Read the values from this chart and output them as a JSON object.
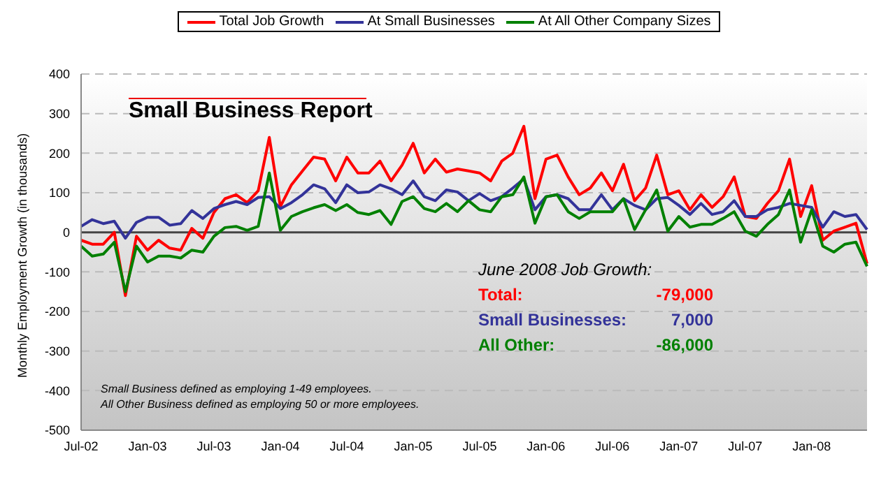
{
  "chart_data": {
    "type": "line",
    "title": "Small Business Report",
    "ylabel": "Monthly Employment Growth (in thousands)",
    "categories": [
      "Jul-02",
      null,
      null,
      null,
      null,
      null,
      "Jan-03",
      null,
      null,
      null,
      null,
      null,
      "Jul-03",
      null,
      null,
      null,
      null,
      null,
      "Jan-04",
      null,
      null,
      null,
      null,
      null,
      "Jul-04",
      null,
      null,
      null,
      null,
      null,
      "Jan-05",
      null,
      null,
      null,
      null,
      null,
      "Jul-05",
      null,
      null,
      null,
      null,
      null,
      "Jan-06",
      null,
      null,
      null,
      null,
      null,
      "Jul-06",
      null,
      null,
      null,
      null,
      null,
      "Jan-07",
      null,
      null,
      null,
      null,
      null,
      "Jul-07",
      null,
      null,
      null,
      null,
      null,
      "Jan-08",
      null,
      null,
      null,
      null,
      null
    ],
    "series": [
      {
        "name": "Total Job Growth",
        "color": "#ff0000",
        "values": [
          -20,
          -30,
          -30,
          0,
          -160,
          -10,
          -45,
          -20,
          -40,
          -45,
          10,
          -15,
          50,
          85,
          95,
          75,
          105,
          240,
          65,
          120,
          155,
          190,
          185,
          130,
          190,
          150,
          150,
          180,
          130,
          170,
          225,
          150,
          185,
          152,
          160,
          155,
          150,
          130,
          180,
          200,
          268,
          85,
          185,
          195,
          140,
          95,
          112,
          150,
          105,
          172,
          80,
          112,
          195,
          95,
          105,
          57,
          95,
          63,
          90,
          140,
          40,
          35,
          73,
          105,
          185,
          40,
          118,
          -20,
          3,
          13,
          23,
          -79
        ]
      },
      {
        "name": "At Small Businesses",
        "color": "#333399",
        "values": [
          15,
          32,
          22,
          28,
          -15,
          25,
          38,
          38,
          18,
          22,
          55,
          35,
          60,
          70,
          78,
          70,
          88,
          90,
          60,
          75,
          95,
          120,
          110,
          75,
          120,
          100,
          102,
          120,
          110,
          95,
          130,
          90,
          80,
          107,
          102,
          80,
          98,
          80,
          90,
          112,
          135,
          57,
          90,
          95,
          85,
          57,
          57,
          95,
          57,
          85,
          68,
          57,
          85,
          88,
          68,
          45,
          73,
          45,
          52,
          80,
          40,
          40,
          57,
          63,
          73,
          68,
          63,
          13,
          52,
          40,
          45,
          7
        ]
      },
      {
        "name": "At All Other Company Sizes",
        "color": "#008000",
        "values": [
          -35,
          -60,
          -55,
          -25,
          -150,
          -35,
          -75,
          -60,
          -60,
          -65,
          -45,
          -50,
          -10,
          12,
          15,
          5,
          15,
          150,
          5,
          40,
          52,
          62,
          70,
          55,
          70,
          50,
          45,
          55,
          20,
          78,
          90,
          60,
          52,
          73,
          52,
          80,
          57,
          52,
          90,
          95,
          140,
          23,
          90,
          95,
          52,
          35,
          52,
          52,
          52,
          85,
          7,
          57,
          107,
          3,
          40,
          13,
          20,
          20,
          35,
          52,
          3,
          -10,
          20,
          45,
          107,
          -25,
          57,
          -35,
          -50,
          -30,
          -25,
          -86
        ]
      }
    ],
    "ylim": [
      -500,
      400
    ],
    "yticks": [
      -500,
      -400,
      -300,
      -200,
      -100,
      0,
      100,
      200,
      300,
      400
    ],
    "grid": "y",
    "legend": "top",
    "line_style": "solid",
    "marker": "none",
    "annotations": [
      "June 2008 Job Growth:",
      "Total:",
      "-79,000",
      "Small Businesses:",
      "7,000",
      "All Other:",
      "-86,000",
      "Small Business defined as employing 1-49 employees.",
      "All Other Business defined as employing 50 or more employees."
    ]
  }
}
